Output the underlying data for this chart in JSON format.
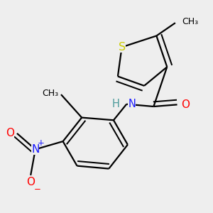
{
  "background_color": "#eeeeee",
  "atom_colors": {
    "C": "#000000",
    "H": "#4a9a9a",
    "N": "#1a1aff",
    "O": "#ff0000",
    "S": "#cccc00"
  },
  "bond_color": "#000000",
  "bond_width": 1.6,
  "font_size": 10.5,
  "figsize": [
    3.0,
    3.0
  ],
  "dpi": 100
}
